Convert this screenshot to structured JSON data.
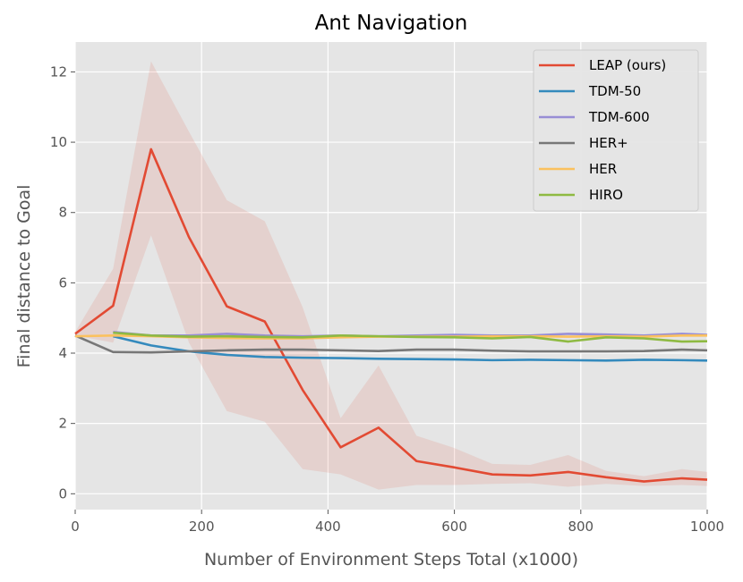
{
  "chart_data": {
    "type": "line",
    "title": "Ant Navigation",
    "xlabel": "Number of Environment Steps Total (x1000)",
    "ylabel": "Final distance to Goal",
    "xlim": [
      0,
      1000
    ],
    "ylim": [
      -0.45,
      12.85
    ],
    "xticks": [
      0,
      200,
      400,
      600,
      800,
      1000
    ],
    "yticks": [
      0,
      2,
      4,
      6,
      8,
      10,
      12
    ],
    "grid": true,
    "legend_position": "top-right",
    "series": [
      {
        "name": "LEAP (ours)",
        "color": "#E24A33",
        "x": [
          0,
          60,
          120,
          180,
          240,
          300,
          360,
          420,
          480,
          540,
          600,
          660,
          720,
          780,
          840,
          900,
          960,
          1000
        ],
        "values": [
          4.55,
          5.35,
          9.8,
          7.3,
          5.33,
          4.9,
          2.95,
          1.32,
          1.88,
          0.93,
          0.75,
          0.55,
          0.52,
          0.62,
          0.47,
          0.35,
          0.44,
          0.4
        ],
        "band_upper": [
          4.6,
          6.4,
          12.3,
          10.3,
          8.35,
          7.75,
          5.3,
          2.15,
          3.65,
          1.65,
          1.3,
          0.85,
          0.82,
          1.1,
          0.65,
          0.5,
          0.7,
          0.62
        ],
        "band_lower": [
          4.5,
          4.3,
          7.35,
          4.3,
          2.35,
          2.05,
          0.7,
          0.55,
          0.12,
          0.25,
          0.25,
          0.28,
          0.3,
          0.2,
          0.28,
          0.22,
          0.25,
          0.22
        ]
      },
      {
        "name": "TDM-50",
        "color": "#348ABD",
        "x": [
          60,
          120,
          180,
          240,
          300,
          360,
          420,
          480,
          540,
          600,
          660,
          720,
          780,
          840,
          900,
          960,
          1000
        ],
        "values": [
          4.48,
          4.22,
          4.05,
          3.95,
          3.89,
          3.87,
          3.86,
          3.84,
          3.83,
          3.82,
          3.8,
          3.81,
          3.8,
          3.79,
          3.81,
          3.8,
          3.79
        ]
      },
      {
        "name": "TDM-600",
        "color": "#988ED5",
        "x": [
          60,
          120,
          180,
          240,
          300,
          360,
          420,
          480,
          540,
          600,
          660,
          720,
          780,
          840,
          900,
          960,
          1000
        ],
        "values": [
          4.6,
          4.5,
          4.5,
          4.55,
          4.5,
          4.48,
          4.5,
          4.48,
          4.5,
          4.52,
          4.5,
          4.5,
          4.55,
          4.53,
          4.5,
          4.55,
          4.52
        ]
      },
      {
        "name": "HER+",
        "color": "#777777",
        "x": [
          0,
          60,
          120,
          180,
          240,
          300,
          360,
          420,
          480,
          540,
          600,
          660,
          720,
          780,
          840,
          900,
          960,
          1000
        ],
        "values": [
          4.5,
          4.03,
          4.02,
          4.05,
          4.08,
          4.1,
          4.1,
          4.08,
          4.06,
          4.1,
          4.1,
          4.07,
          4.05,
          4.05,
          4.05,
          4.06,
          4.1,
          4.08
        ]
      },
      {
        "name": "HER",
        "color": "#FBC15E",
        "x": [
          0,
          60,
          120,
          180,
          240,
          300,
          360,
          420,
          480,
          540,
          600,
          660,
          720,
          780,
          840,
          900,
          960,
          1000
        ],
        "values": [
          4.48,
          4.5,
          4.48,
          4.45,
          4.43,
          4.42,
          4.42,
          4.45,
          4.47,
          4.47,
          4.47,
          4.48,
          4.48,
          4.47,
          4.48,
          4.47,
          4.5,
          4.5
        ]
      },
      {
        "name": "HIRO",
        "color": "#8EBA42",
        "x": [
          60,
          120,
          180,
          240,
          300,
          360,
          420,
          480,
          540,
          600,
          660,
          720,
          780,
          840,
          900,
          960,
          1000
        ],
        "values": [
          4.58,
          4.5,
          4.47,
          4.48,
          4.46,
          4.45,
          4.5,
          4.48,
          4.46,
          4.45,
          4.42,
          4.46,
          4.33,
          4.45,
          4.42,
          4.33,
          4.34
        ]
      }
    ]
  }
}
